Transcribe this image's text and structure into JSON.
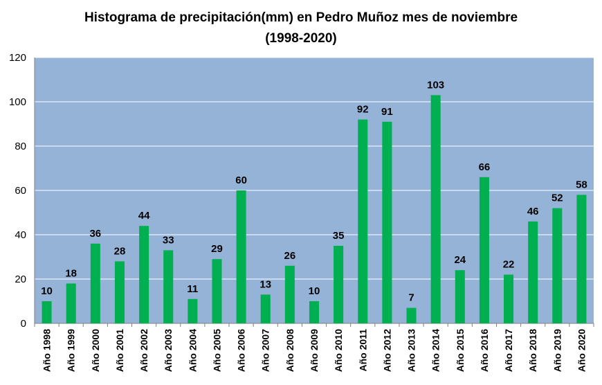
{
  "chart_data": {
    "type": "bar",
    "title": "Histograma de precipitación(mm) en Pedro Muñoz mes de noviembre",
    "subtitle": "(1998-2020)",
    "categories": [
      "Año 1998",
      "Año 1999",
      "Año 2000",
      "Año 2001",
      "Año 2002",
      "Año 2003",
      "Año 2004",
      "Año 2005",
      "Año 2006",
      "Año 2007",
      "Año 2008",
      "Año 2009",
      "Año 2010",
      "Año 2011",
      "Año 2012",
      "Año 2013",
      "Año 2014",
      "Año 2015",
      "Año 2016",
      "Año 2017",
      "Año 2018",
      "Año 2019",
      "Año 2020"
    ],
    "values": [
      10,
      18,
      36,
      28,
      44,
      33,
      11,
      29,
      60,
      13,
      26,
      10,
      35,
      92,
      91,
      7,
      103,
      24,
      66,
      22,
      46,
      52,
      58
    ],
    "ylim": [
      0,
      120
    ],
    "yticks": [
      0,
      20,
      40,
      60,
      80,
      100,
      120
    ],
    "grid": true,
    "legend": "none",
    "colors": {
      "bar": "#00b050",
      "plot_bg": "#95b3d7",
      "grid": "#ffffff"
    }
  }
}
